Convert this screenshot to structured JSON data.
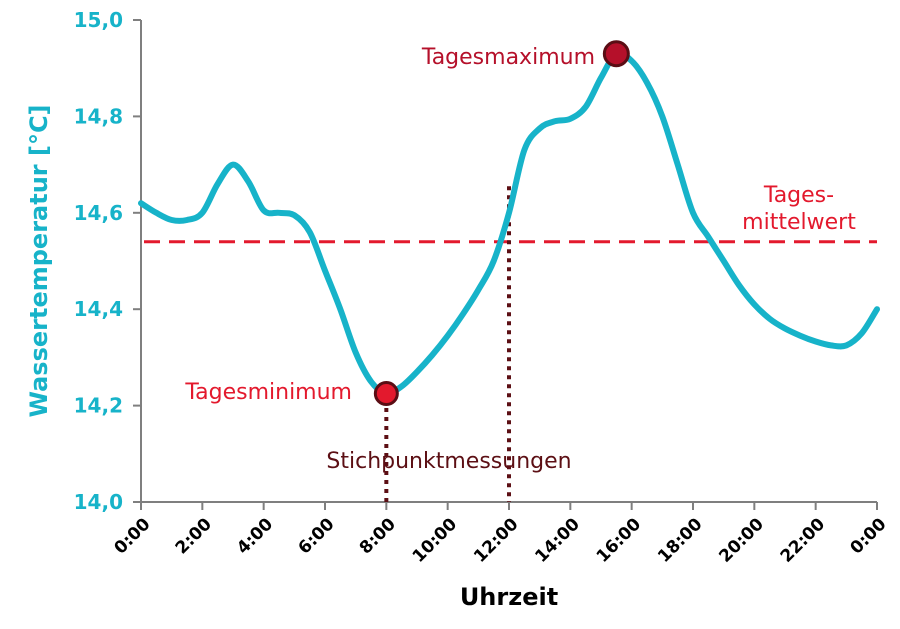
{
  "colors": {
    "series": "#17b3c9",
    "mean_line": "#e3192d",
    "min_marker": "#e3192d",
    "max_marker": "#b5102a",
    "marker_stroke": "#5a0d14",
    "spot_lines": "#5c0f14",
    "axis": "#7f7f7f"
  },
  "chart_data": {
    "type": "line",
    "xlabel": "Uhrzeit",
    "ylabel": "Wassertemperatur [°C]",
    "ylim": [
      14.0,
      15.0
    ],
    "xlim": [
      0,
      24
    ],
    "grid": false,
    "y_ticks": [
      "14,0",
      "14,2",
      "14,4",
      "14,6",
      "14,8",
      "15,0"
    ],
    "x_ticks": [
      "0:00",
      "2:00",
      "4:00",
      "6:00",
      "8:00",
      "10:00",
      "12:00",
      "14:00",
      "16:00",
      "18:00",
      "20:00",
      "22:00",
      "0:00"
    ],
    "series": [
      {
        "x": [
          0,
          0.5,
          1,
          1.5,
          2,
          2.5,
          3,
          3.5,
          4,
          4.5,
          5,
          5.5,
          6,
          6.5,
          7,
          7.5,
          8,
          8.5,
          9,
          9.5,
          10,
          10.5,
          11,
          11.5,
          12,
          12.5,
          13,
          13.5,
          14,
          14.5,
          15,
          15.5,
          16,
          16.5,
          17,
          17.5,
          18,
          18.5,
          19,
          19.5,
          20,
          20.5,
          21,
          21.5,
          22,
          22.5,
          23,
          23.5,
          24
        ],
        "y": [
          14.62,
          14.6,
          14.585,
          14.585,
          14.6,
          14.66,
          14.7,
          14.665,
          14.605,
          14.6,
          14.595,
          14.56,
          14.48,
          14.4,
          14.31,
          14.25,
          14.225,
          14.24,
          14.27,
          14.305,
          14.345,
          14.39,
          14.44,
          14.5,
          14.6,
          14.73,
          14.775,
          14.79,
          14.795,
          14.82,
          14.88,
          14.93,
          14.915,
          14.87,
          14.8,
          14.7,
          14.6,
          14.55,
          14.5,
          14.45,
          14.41,
          14.38,
          14.36,
          14.345,
          14.333,
          14.325,
          14.325,
          14.35,
          14.4
        ]
      }
    ],
    "mean_value": 14.54,
    "min_point": {
      "x": 8,
      "y": 14.225
    },
    "max_point": {
      "x": 15.5,
      "y": 14.93
    },
    "spot_measurements": [
      {
        "x": 8,
        "y_top": 14.195
      },
      {
        "x": 12,
        "y_top": 14.655
      }
    ],
    "annotations": {
      "max_label": "Tagesmaximum",
      "min_label": "Tagesminimum",
      "mean_label_line1": "Tages-",
      "mean_label_line2": "mittelwert",
      "spot_label": "Stichpunktmessungen"
    }
  }
}
